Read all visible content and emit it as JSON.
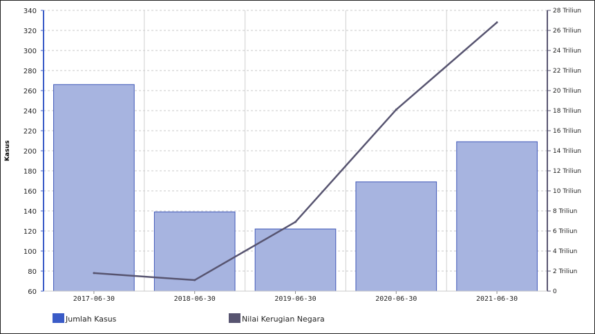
{
  "chart_data": {
    "type": "bar",
    "categories": [
      "2017-06-30",
      "2018-06-30",
      "2019-06-30",
      "2020-06-30",
      "2021-06-30"
    ],
    "series": [
      {
        "name": "Jumlah Kasus",
        "type": "bar",
        "axis": "left",
        "color": "#a7b4e0",
        "stroke": "#3f57b8",
        "values": [
          266,
          139,
          122,
          169,
          209
        ]
      },
      {
        "name": "Nilai Kerugian Negara",
        "type": "line",
        "axis": "right",
        "unit": "Triliun",
        "color": "#575470",
        "values": [
          1.8,
          1.1,
          6.9,
          18.1,
          26.8
        ]
      }
    ],
    "y_left": {
      "label": "Kasus",
      "min": 60,
      "max": 340,
      "step": 20,
      "ticks": [
        "60",
        "80",
        "100",
        "120",
        "140",
        "160",
        "180",
        "200",
        "220",
        "240",
        "260",
        "280",
        "300",
        "320",
        "340"
      ]
    },
    "y_right": {
      "label": "",
      "min": 0,
      "max": 28,
      "step": 2,
      "ticks": [
        "0",
        "2 Triliun",
        "4 Triliun",
        "6 Triliun",
        "8 Triliun",
        "10 Triliun",
        "12 Triliun",
        "14 Triliun",
        "16 Triliun",
        "18 Triliun",
        "20 Triliun",
        "22 Triliun",
        "24 Triliun",
        "26 Triliun",
        "28 Triliun"
      ]
    },
    "grid": true,
    "legend": {
      "placement": "bottom-left",
      "items": [
        {
          "label": "Jumlah Kasus",
          "color": "#3a5bc7"
        },
        {
          "label": "Nilai Kerugian Negara",
          "color": "#575470"
        }
      ]
    }
  }
}
